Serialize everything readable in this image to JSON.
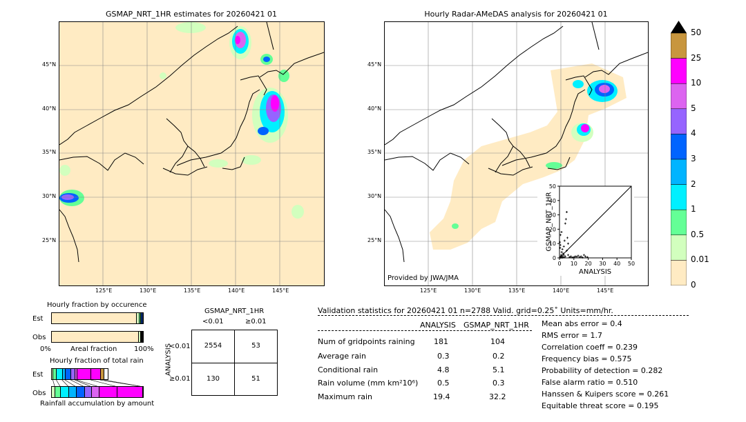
{
  "maps": {
    "left_title": "GSMAP_NRT_1HR estimates for 20260421 01",
    "right_title": "Hourly Radar-AMeDAS analysis for 20260421 01",
    "lat_ticks": [
      "45°N",
      "40°N",
      "35°N",
      "30°N",
      "25°N"
    ],
    "lon_ticks": [
      "125°E",
      "130°E",
      "135°E",
      "140°E",
      "145°E"
    ],
    "credit": "Provided by JWA/JMA"
  },
  "colorbar": {
    "labels": [
      "50",
      "25",
      "10",
      "5",
      "4",
      "3",
      "2",
      "1",
      "0.5",
      "0.01",
      "0"
    ],
    "colors": [
      "#c8963e",
      "#ff00ff",
      "#dc64f0",
      "#9664ff",
      "#0064ff",
      "#00b4ff",
      "#00f0ff",
      "#64ff96",
      "#d2ffbe",
      "#ffebc3"
    ]
  },
  "chart_data": [
    {
      "type": "scatter",
      "xlabel": "ANALYSIS",
      "ylabel": "GSMAP_NRT_1HR",
      "xlim": [
        0,
        50
      ],
      "ylim": [
        0,
        50
      ],
      "xticks": [
        "0",
        "10",
        "20",
        "30",
        "40",
        "50"
      ],
      "yticks": [
        "0",
        "10",
        "20",
        "30",
        "40",
        "50"
      ],
      "points": [
        [
          0.5,
          0.3
        ],
        [
          0.8,
          1
        ],
        [
          1,
          0.5
        ],
        [
          1.2,
          2
        ],
        [
          1.5,
          4
        ],
        [
          2,
          1
        ],
        [
          2,
          6
        ],
        [
          2.5,
          3
        ],
        [
          3,
          2
        ],
        [
          3,
          8
        ],
        [
          3.5,
          12
        ],
        [
          4,
          1
        ],
        [
          4,
          24
        ],
        [
          4.5,
          27
        ],
        [
          5,
          32
        ],
        [
          5,
          5
        ],
        [
          5.5,
          14
        ],
        [
          6,
          2
        ],
        [
          6,
          10
        ],
        [
          7,
          0.5
        ],
        [
          8,
          1
        ],
        [
          9,
          0.3
        ],
        [
          10,
          0.5
        ],
        [
          11,
          1
        ],
        [
          12,
          0.8
        ],
        [
          13,
          1.5
        ],
        [
          14,
          0.5
        ],
        [
          15,
          1
        ],
        [
          16,
          0.3
        ],
        [
          17,
          2
        ],
        [
          18,
          1
        ],
        [
          19.4,
          0.5
        ],
        [
          1,
          0.1
        ],
        [
          2,
          0.2
        ],
        [
          3,
          0.4
        ],
        [
          0.4,
          7
        ],
        [
          0.6,
          9
        ],
        [
          0.3,
          11
        ],
        [
          0.7,
          16
        ],
        [
          1.4,
          18
        ]
      ]
    },
    {
      "type": "bar",
      "title": "Hourly fraction by occurence",
      "categories": [
        "Est",
        "Obs"
      ],
      "xlabel": "Areal fraction",
      "xticks": [
        "0%",
        "100%"
      ],
      "series": [
        {
          "values": [
            0.935,
            0.962
          ]
        },
        {
          "values": [
            0.025,
            0.02
          ]
        },
        {
          "values": [
            0.015,
            0.008
          ]
        },
        {
          "values": [
            0.012,
            0.005
          ]
        },
        {
          "values": [
            0.013,
            0.005
          ]
        }
      ],
      "colors": [
        "#ffebc3",
        "#d2ffbe",
        "#64ff96",
        "#00f0ff",
        "#0064ff"
      ]
    },
    {
      "type": "bar",
      "title": "Hourly fraction of total rain",
      "categories": [
        "Est",
        "Obs"
      ],
      "xlabel": "Rainfall accumulation by amount",
      "series": [
        {
          "values": [
            0.03,
            0.04
          ]
        },
        {
          "values": [
            0.06,
            0.06
          ]
        },
        {
          "values": [
            0.1,
            0.09
          ]
        },
        {
          "values": [
            0.05,
            0.08
          ]
        },
        {
          "values": [
            0.1,
            0.09
          ]
        },
        {
          "values": [
            0.07,
            0.08
          ]
        },
        {
          "values": [
            0.03,
            0.08
          ]
        },
        {
          "values": [
            0.25,
            0.2
          ]
        },
        {
          "values": [
            0.16,
            0.28
          ]
        },
        {
          "values": [
            0.07,
            0
          ]
        }
      ],
      "colors": [
        "#d2ffbe",
        "#64ff96",
        "#00f0ff",
        "#00b4ff",
        "#0064ff",
        "#9664ff",
        "#dc64f0",
        "#ff00ff",
        "#ff00ff",
        "#c8963e"
      ],
      "est_fraction": 0.62,
      "obs_fraction": 1.0
    }
  ],
  "contingency": {
    "title": "GSMAP_NRT_1HR",
    "col_labels": [
      "<0.01",
      "≥0.01"
    ],
    "row_axis": "ANALYSIS",
    "row_labels": [
      "<0.01",
      "≥0.01"
    ],
    "cells": [
      "2554",
      "53",
      "130",
      "51"
    ]
  },
  "validation": {
    "header": "Validation statistics for 20260421 01  n=2788 Valid. grid=0.25˚ Units=mm/hr.",
    "col1": "ANALYSIS",
    "col2": "GSMAP_NRT_1HR",
    "rows": [
      {
        "label": "Num of gridpoints raining",
        "a": "181",
        "g": "104"
      },
      {
        "label": "Average rain",
        "a": "0.3",
        "g": "0.2"
      },
      {
        "label": "Conditional rain",
        "a": "4.8",
        "g": "5.1"
      },
      {
        "label": "Rain volume (mm km²10⁶)",
        "a": "0.5",
        "g": "0.3"
      },
      {
        "label": "Maximum rain",
        "a": "19.4",
        "g": "32.2"
      }
    ],
    "scores": [
      "Mean abs error =    0.4",
      "RMS error =    1.7",
      "Correlation coeff =  0.239",
      "Frequency bias =  0.575",
      "Probability of detection =  0.282",
      "False alarm ratio =  0.510",
      "Hanssen & Kuipers score =  0.261",
      "Equitable threat score =  0.195"
    ]
  }
}
